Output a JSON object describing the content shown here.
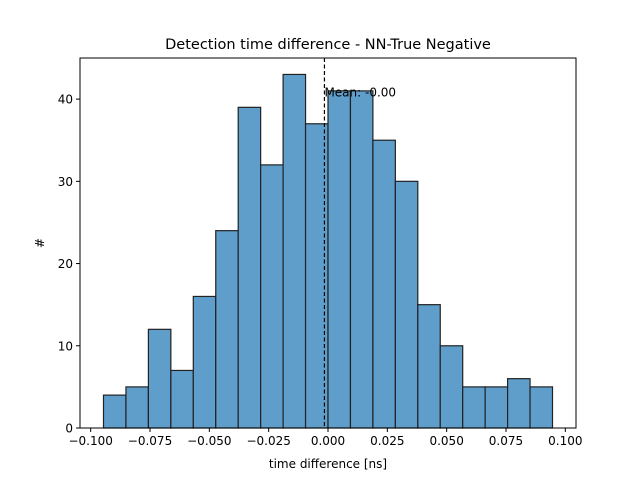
{
  "chart_data": {
    "type": "bar",
    "title": "Detection time difference - NN-True Negative",
    "xlabel": "time difference [ns]",
    "ylabel": "#",
    "xlim": [
      -0.1045,
      0.1045
    ],
    "ylim": [
      0,
      45
    ],
    "x_ticks": [
      -0.1,
      -0.075,
      -0.05,
      -0.025,
      0.0,
      0.025,
      0.05,
      0.075,
      0.1
    ],
    "x_tick_labels": [
      "−0.100",
      "−0.075",
      "−0.050",
      "−0.025",
      "0.000",
      "0.025",
      "0.050",
      "0.075",
      "0.100"
    ],
    "y_ticks": [
      0,
      10,
      20,
      30,
      40
    ],
    "y_tick_labels": [
      "0",
      "10",
      "20",
      "30",
      "40"
    ],
    "bin_start": -0.0946,
    "bin_width": 0.00946,
    "counts": [
      4,
      5,
      12,
      7,
      16,
      24,
      39,
      32,
      43,
      37,
      41,
      41,
      35,
      30,
      15,
      10,
      5,
      5,
      6,
      5
    ],
    "bar_color": "#5f9ecb",
    "edge_color": "#222222",
    "mean_line": {
      "x": -0.0015,
      "label": "Mean: -0.00",
      "style": "dashed",
      "color": "#000000"
    },
    "grid": false,
    "legend": "none"
  }
}
